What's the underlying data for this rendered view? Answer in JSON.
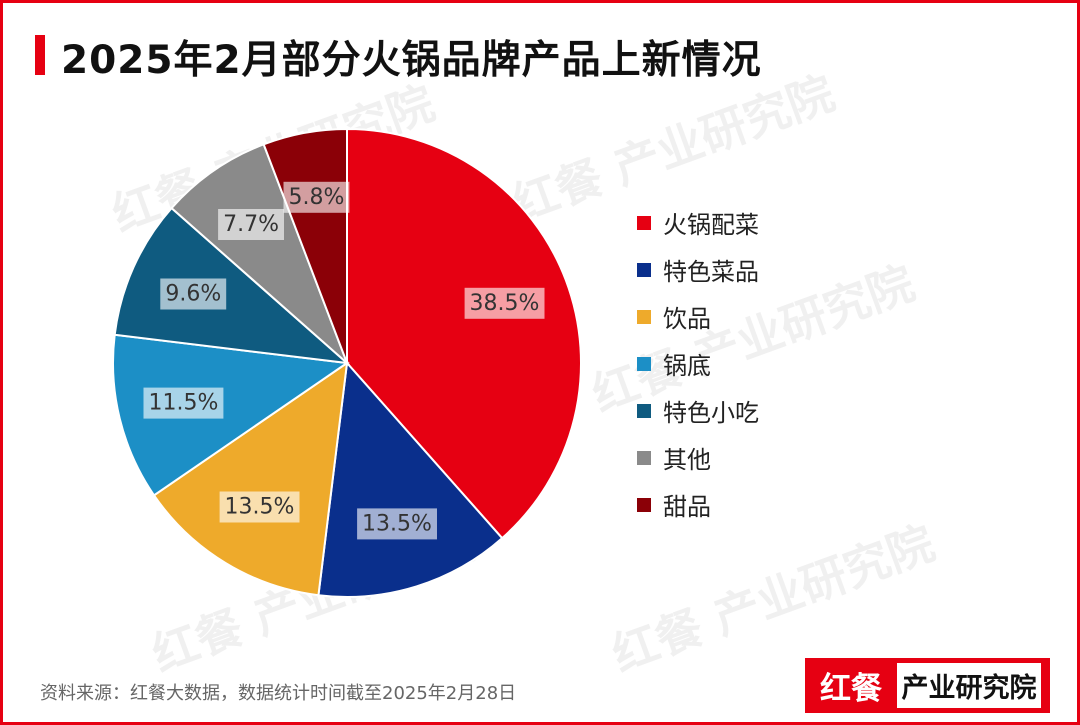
{
  "title": "2025年2月部分火锅品牌产品上新情况",
  "source_note": "资料来源：红餐大数据，数据统计时间截至2025年2月28日",
  "brand": {
    "logo": "红餐",
    "name": "产业研究院"
  },
  "watermark": "红餐 产业研究院",
  "colors": {
    "accent": "#e60012"
  },
  "chart_data": {
    "type": "pie",
    "title": "2025年2月部分火锅品牌产品上新情况",
    "legend_position": "right",
    "slices": [
      {
        "label": "火锅配菜",
        "value": 38.5,
        "display": "38.5%",
        "color": "#e60012"
      },
      {
        "label": "特色菜品",
        "value": 13.5,
        "display": "13.5%",
        "color": "#0a2f8c"
      },
      {
        "label": "饮品",
        "value": 13.5,
        "display": "13.5%",
        "color": "#eeaa2b"
      },
      {
        "label": "锅底",
        "value": 11.5,
        "display": "11.5%",
        "color": "#1c8fc6"
      },
      {
        "label": "特色小吃",
        "value": 9.6,
        "display": "9.6%",
        "color": "#0f5b80"
      },
      {
        "label": "其他",
        "value": 7.7,
        "display": "7.7%",
        "color": "#8a8a8a"
      },
      {
        "label": "甜品",
        "value": 5.8,
        "display": "5.8%",
        "color": "#8b0007"
      }
    ]
  }
}
